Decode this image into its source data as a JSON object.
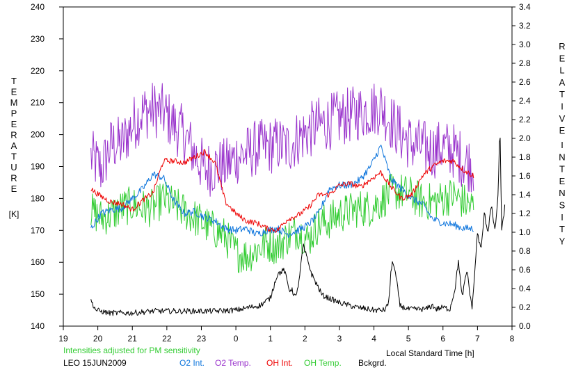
{
  "chart_data": {
    "type": "line",
    "left_axis": {
      "label_letters": [
        "T",
        "E",
        "M",
        "P",
        "E",
        "R",
        "A",
        "T",
        "U",
        "R",
        "E"
      ],
      "unit": "[K]",
      "range": [
        140,
        240
      ],
      "ticks": [
        "140",
        "150",
        "160",
        "170",
        "180",
        "190",
        "200",
        "210",
        "220",
        "230",
        "240"
      ]
    },
    "right_axis": {
      "label_word1": [
        "R",
        "E",
        "L",
        "A",
        "T",
        "I",
        "V",
        "E"
      ],
      "label_word2": [
        "I",
        "N",
        "T",
        "E",
        "N",
        "S",
        "I",
        "T",
        "Y"
      ],
      "range": [
        0.0,
        3.4
      ],
      "ticks": [
        "0.0",
        "0.2",
        "0.4",
        "0.6",
        "0.8",
        "1.0",
        "1.2",
        "1.4",
        "1.6",
        "1.8",
        "2.0",
        "2.2",
        "2.4",
        "2.6",
        "2.8",
        "3.0",
        "3.2",
        "3.4"
      ]
    },
    "x_axis": {
      "label": "Local Standard Time [h]",
      "range": [
        19,
        32
      ],
      "tick_labels": [
        "19",
        "20",
        "21",
        "22",
        "23",
        "0",
        "1",
        "2",
        "3",
        "4",
        "5",
        "6",
        "7",
        "8"
      ]
    },
    "note": "Intensities adjusted for PM sensitivity",
    "station": "LEO 15JUN2009",
    "legend": [
      "O2 Int.",
      "O2 Temp.",
      "OH Int.",
      "OH Temp.",
      "Bckgrd."
    ],
    "series": [
      {
        "name": "O2 Temp.",
        "axis": "left",
        "color": "#9933cc",
        "x": [
          19.8,
          20.1,
          20.4,
          20.7,
          21.0,
          21.3,
          21.6,
          21.9,
          22.2,
          22.5,
          22.8,
          23.1,
          23.4,
          23.7,
          24.0,
          24.3,
          24.6,
          24.9,
          25.2,
          25.5,
          25.8,
          26.1,
          26.4,
          26.7,
          27.0,
          27.3,
          27.6,
          27.9,
          28.2,
          28.5,
          28.8,
          29.1,
          29.4,
          29.7,
          30.0,
          30.3,
          30.6,
          30.9
        ],
        "values": [
          193,
          189,
          197,
          197,
          203,
          207,
          208,
          207,
          203,
          200,
          194,
          189,
          190,
          190,
          193,
          194,
          196,
          196,
          197,
          196,
          199,
          201,
          203,
          204,
          205,
          206,
          207,
          208,
          209,
          204,
          200,
          197,
          196,
          195,
          196,
          195,
          192,
          190
        ],
        "noise": 9
      },
      {
        "name": "OH Temp.",
        "axis": "left",
        "color": "#33cc33",
        "x": [
          19.8,
          20.1,
          20.4,
          20.7,
          21.0,
          21.3,
          21.6,
          21.9,
          22.2,
          22.5,
          22.8,
          23.1,
          23.4,
          23.7,
          24.0,
          24.3,
          24.6,
          24.9,
          25.2,
          25.5,
          25.8,
          26.1,
          26.4,
          26.7,
          27.0,
          27.3,
          27.6,
          27.9,
          28.2,
          28.5,
          28.8,
          29.1,
          29.4,
          29.7,
          30.0,
          30.3,
          30.6,
          30.9
        ],
        "values": [
          176,
          174,
          175,
          177,
          178,
          177,
          177,
          180,
          178,
          176,
          174,
          172,
          170,
          168,
          163,
          162,
          164,
          166,
          165,
          168,
          170,
          167,
          172,
          173,
          175,
          176,
          177,
          177,
          179,
          182,
          182,
          181,
          179,
          179,
          180,
          181,
          179,
          177
        ],
        "noise": 6
      },
      {
        "name": "O2 Int.",
        "axis": "right",
        "color": "#1177dd",
        "x": [
          19.8,
          20.1,
          20.4,
          20.7,
          21.0,
          21.3,
          21.6,
          21.9,
          22.2,
          22.5,
          22.8,
          23.1,
          23.4,
          23.7,
          24.0,
          24.3,
          24.6,
          24.9,
          25.2,
          25.5,
          25.8,
          26.1,
          26.4,
          26.7,
          27.0,
          27.3,
          27.6,
          27.9,
          28.2,
          28.5,
          28.8,
          29.1,
          29.4,
          29.7,
          30.0,
          30.3,
          30.6,
          30.9
        ],
        "values": [
          1.04,
          1.2,
          1.24,
          1.26,
          1.36,
          1.46,
          1.62,
          1.58,
          1.34,
          1.2,
          1.22,
          1.16,
          1.12,
          1.04,
          1.02,
          1.04,
          0.98,
          1.02,
          1.04,
          0.98,
          1.02,
          1.08,
          1.2,
          1.46,
          1.5,
          1.5,
          1.56,
          1.7,
          1.92,
          1.56,
          1.46,
          1.36,
          1.3,
          1.14,
          1.1,
          1.08,
          1.04,
          1.04
        ],
        "noise": 0.04
      },
      {
        "name": "OH Int.",
        "axis": "right",
        "color": "#ee0000",
        "x": [
          19.8,
          20.1,
          20.4,
          20.7,
          21.0,
          21.3,
          21.6,
          21.9,
          22.2,
          22.5,
          22.8,
          23.1,
          23.4,
          23.7,
          24.0,
          24.3,
          24.6,
          24.9,
          25.2,
          25.5,
          25.8,
          26.1,
          26.4,
          26.7,
          27.0,
          27.3,
          27.6,
          27.9,
          28.2,
          28.5,
          28.8,
          29.1,
          29.4,
          29.7,
          30.0,
          30.3,
          30.6,
          30.9
        ],
        "values": [
          1.46,
          1.38,
          1.32,
          1.3,
          1.24,
          1.34,
          1.42,
          1.76,
          1.76,
          1.74,
          1.8,
          1.86,
          1.74,
          1.32,
          1.2,
          1.12,
          1.1,
          1.04,
          1.02,
          1.14,
          1.18,
          1.26,
          1.4,
          1.4,
          1.5,
          1.52,
          1.48,
          1.56,
          1.64,
          1.48,
          1.36,
          1.4,
          1.6,
          1.7,
          1.76,
          1.76,
          1.66,
          1.6
        ],
        "noise": 0.03
      },
      {
        "name": "Bckgrd.",
        "axis": "right",
        "color": "#000000",
        "x": [
          19.8,
          19.95,
          20.3,
          21.0,
          21.6,
          22.2,
          22.8,
          23.4,
          24.0,
          24.4,
          24.7,
          25.0,
          25.1,
          25.2,
          25.4,
          25.55,
          25.6,
          25.75,
          25.85,
          25.95,
          26.2,
          26.5,
          27.0,
          27.5,
          28.0,
          28.3,
          28.4,
          28.45,
          28.5,
          28.55,
          28.65,
          28.75,
          28.85,
          29.0,
          29.5,
          29.7,
          29.8,
          30.0,
          30.2,
          30.35,
          30.45,
          30.55,
          30.6,
          30.7,
          30.8,
          30.85,
          31.0,
          31.1,
          31.2,
          31.3,
          31.4,
          31.5,
          31.6,
          31.65,
          31.7,
          31.8
        ],
        "values": [
          0.27,
          0.17,
          0.14,
          0.14,
          0.16,
          0.16,
          0.16,
          0.16,
          0.17,
          0.2,
          0.22,
          0.3,
          0.43,
          0.55,
          0.6,
          0.38,
          0.4,
          0.3,
          0.55,
          0.86,
          0.55,
          0.33,
          0.25,
          0.2,
          0.17,
          0.17,
          0.22,
          0.35,
          0.6,
          0.7,
          0.5,
          0.22,
          0.2,
          0.18,
          0.18,
          0.22,
          0.18,
          0.2,
          0.18,
          0.4,
          0.7,
          0.3,
          0.4,
          0.6,
          0.28,
          0.2,
          1.0,
          0.8,
          1.2,
          1.0,
          1.3,
          1.0,
          1.4,
          2.2,
          1.0,
          1.3
        ],
        "noise": 0.03
      }
    ]
  }
}
